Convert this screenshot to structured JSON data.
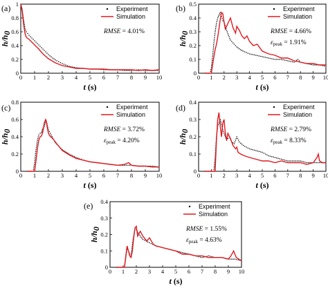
{
  "colors": {
    "simulation": "#e0181e",
    "experiment": "#000000"
  },
  "chart_data": [
    {
      "type": "line",
      "panel": "(a)",
      "xlabel": "t (s)",
      "ylabel": "h/h0",
      "xlim": [
        0,
        10
      ],
      "ylim": [
        0,
        1.0
      ],
      "xticks": [
        0,
        1,
        2,
        3,
        4,
        5,
        6,
        7,
        8,
        9,
        10
      ],
      "yticks": [
        0,
        0.2,
        0.4,
        0.6,
        0.8,
        1.0
      ],
      "ytick_labels": [
        "0",
        "0.2",
        "0.4",
        "0.6",
        "0.8",
        "1"
      ],
      "legend": [
        "Experiment",
        "Simulation"
      ],
      "annotations": [
        "RMSE = 4.01%"
      ],
      "series": [
        {
          "name": "Experiment",
          "style": "dots",
          "x": [
            0,
            0.1,
            0.2,
            0.3,
            0.4,
            0.6,
            0.8,
            1.0,
            1.2,
            1.5,
            1.8,
            2.0,
            2.3,
            2.6,
            3.0,
            3.5,
            4.0,
            4.5,
            5.0,
            5.5,
            6.0,
            6.5,
            7.0,
            7.5,
            8.0,
            8.5,
            9.0,
            9.5,
            10
          ],
          "y": [
            1.0,
            0.93,
            0.78,
            0.65,
            0.6,
            0.55,
            0.51,
            0.47,
            0.43,
            0.37,
            0.31,
            0.27,
            0.22,
            0.18,
            0.14,
            0.1,
            0.08,
            0.07,
            0.06,
            0.06,
            0.05,
            0.05,
            0.05,
            0.04,
            0.04,
            0.05,
            0.04,
            0.04,
            0.04
          ]
        },
        {
          "name": "Simulation",
          "style": "line",
          "x": [
            0,
            0.1,
            0.2,
            0.3,
            0.4,
            0.6,
            0.8,
            1.0,
            1.3,
            1.6,
            2.0,
            2.5,
            3.0,
            3.5,
            4.0,
            4.5,
            5.0,
            5.5,
            6.0,
            6.5,
            7.0,
            7.5,
            8.0,
            8.5,
            9.0,
            9.5,
            10
          ],
          "y": [
            1.0,
            0.9,
            0.72,
            0.58,
            0.52,
            0.49,
            0.45,
            0.41,
            0.35,
            0.28,
            0.21,
            0.15,
            0.11,
            0.09,
            0.07,
            0.07,
            0.06,
            0.06,
            0.06,
            0.05,
            0.05,
            0.05,
            0.05,
            0.04,
            0.05,
            0.04,
            0.05
          ]
        }
      ]
    },
    {
      "type": "line",
      "panel": "(b)",
      "xlabel": "t (s)",
      "ylabel": "h/h0",
      "xlim": [
        0,
        10
      ],
      "ylim": [
        0,
        0.5
      ],
      "xticks": [
        0,
        1,
        2,
        3,
        4,
        5,
        6,
        7,
        8,
        9,
        10
      ],
      "yticks": [
        0,
        0.1,
        0.2,
        0.3,
        0.4,
        0.5
      ],
      "ytick_labels": [
        "0",
        "0.1",
        "0.2",
        "0.3",
        "0.4",
        "0.5"
      ],
      "legend": [
        "Experiment",
        "Simulation"
      ],
      "annotations": [
        "RMSE = 4.66%",
        "εpeak = 1.91%"
      ],
      "series": [
        {
          "name": "Experiment",
          "style": "dots",
          "x": [
            0.5,
            0.9,
            1.0,
            1.1,
            1.2,
            1.3,
            1.4,
            1.5,
            1.6,
            1.7,
            1.8,
            1.9,
            2.0,
            2.2,
            2.5,
            2.8,
            3.0,
            3.3,
            3.5,
            4.0,
            4.5,
            5.0,
            5.5,
            6.0,
            6.5,
            7.0,
            7.5,
            7.8,
            8.0,
            8.5,
            9.0,
            9.5,
            10
          ],
          "y": [
            0,
            0,
            0.04,
            0.12,
            0.22,
            0.3,
            0.36,
            0.4,
            0.42,
            0.44,
            0.41,
            0.38,
            0.37,
            0.31,
            0.24,
            0.21,
            0.19,
            0.17,
            0.16,
            0.14,
            0.13,
            0.12,
            0.11,
            0.1,
            0.1,
            0.09,
            0.08,
            0.1,
            0.08,
            0.07,
            0.06,
            0.06,
            0.05
          ]
        },
        {
          "name": "Simulation",
          "style": "line",
          "x": [
            0.5,
            1.0,
            1.1,
            1.2,
            1.3,
            1.4,
            1.5,
            1.6,
            1.7,
            1.8,
            1.9,
            2.0,
            2.1,
            2.3,
            2.5,
            2.7,
            2.9,
            3.0,
            3.2,
            3.4,
            3.6,
            3.8,
            4.0,
            4.3,
            4.6,
            5.0,
            5.5,
            6.0,
            6.5,
            7.0,
            7.5,
            8.0,
            8.5,
            9.0,
            9.5,
            10
          ],
          "y": [
            0,
            0,
            0.06,
            0.12,
            0.17,
            0.21,
            0.26,
            0.32,
            0.39,
            0.44,
            0.43,
            0.37,
            0.32,
            0.36,
            0.4,
            0.33,
            0.29,
            0.34,
            0.31,
            0.27,
            0.25,
            0.27,
            0.23,
            0.2,
            0.21,
            0.16,
            0.14,
            0.13,
            0.11,
            0.11,
            0.09,
            0.08,
            0.07,
            0.07,
            0.06,
            0.06
          ]
        }
      ]
    },
    {
      "type": "line",
      "panel": "(c)",
      "xlabel": "t (s)",
      "ylabel": "h/h0",
      "xlim": [
        0,
        10
      ],
      "ylim": [
        0,
        0.8
      ],
      "xticks": [
        0,
        1,
        2,
        3,
        4,
        5,
        6,
        7,
        8,
        9,
        10
      ],
      "yticks": [
        0,
        0.2,
        0.4,
        0.6,
        0.8
      ],
      "ytick_labels": [
        "0",
        "0.2",
        "0.4",
        "0.6",
        "0.8"
      ],
      "legend": [
        "Experiment",
        "Simulation"
      ],
      "annotations": [
        "RMSE = 3.72%",
        "εpeak = 4.20%"
      ],
      "series": [
        {
          "name": "Experiment",
          "style": "dots",
          "x": [
            0.5,
            0.9,
            1.0,
            1.1,
            1.2,
            1.3,
            1.4,
            1.5,
            1.6,
            1.7,
            1.8,
            1.9,
            2.0,
            2.2,
            2.5,
            3.0,
            3.5,
            4.0,
            4.5,
            5.0,
            5.5,
            6.0,
            6.5,
            7.0,
            7.5,
            8.0,
            8.5,
            9.0,
            9.5,
            10
          ],
          "y": [
            0,
            0,
            0.1,
            0.25,
            0.36,
            0.42,
            0.44,
            0.45,
            0.5,
            0.52,
            0.58,
            0.55,
            0.48,
            0.42,
            0.33,
            0.25,
            0.2,
            0.16,
            0.13,
            0.11,
            0.1,
            0.09,
            0.08,
            0.07,
            0.07,
            0.07,
            0.06,
            0.06,
            0.06,
            0.05
          ]
        },
        {
          "name": "Simulation",
          "style": "line",
          "x": [
            0.5,
            1.0,
            1.1,
            1.2,
            1.3,
            1.4,
            1.5,
            1.6,
            1.7,
            1.8,
            1.85,
            1.9,
            2.0,
            2.1,
            2.3,
            2.5,
            2.8,
            3.0,
            3.5,
            4.0,
            4.5,
            5.0,
            5.5,
            6.0,
            6.5,
            7.0,
            7.5,
            7.8,
            8.0,
            8.5,
            9.0,
            9.5,
            10
          ],
          "y": [
            0,
            0,
            0.12,
            0.26,
            0.36,
            0.4,
            0.41,
            0.46,
            0.56,
            0.6,
            0.58,
            0.52,
            0.44,
            0.41,
            0.38,
            0.34,
            0.28,
            0.24,
            0.19,
            0.15,
            0.13,
            0.11,
            0.1,
            0.09,
            0.08,
            0.07,
            0.08,
            0.1,
            0.07,
            0.06,
            0.06,
            0.05,
            0.05
          ]
        }
      ]
    },
    {
      "type": "line",
      "panel": "(d)",
      "xlabel": "t (s)",
      "ylabel": "h/h0",
      "xlim": [
        0,
        10
      ],
      "ylim": [
        0,
        0.4
      ],
      "xticks": [
        0,
        1,
        2,
        3,
        4,
        5,
        6,
        7,
        8,
        9,
        10
      ],
      "yticks": [
        0,
        0.1,
        0.2,
        0.3,
        0.4
      ],
      "ytick_labels": [
        "0",
        "0.1",
        "0.2",
        "0.3",
        "0.4"
      ],
      "legend": [
        "Experiment",
        "Simulation"
      ],
      "annotations": [
        "RMSE = 2.79%",
        "εpeak = 8.33%"
      ],
      "series": [
        {
          "name": "Experiment",
          "style": "dots",
          "x": [
            0.5,
            1.2,
            1.3,
            1.4,
            1.5,
            1.6,
            1.7,
            1.8,
            1.9,
            2.0,
            2.2,
            2.4,
            2.6,
            2.8,
            3.0,
            3.2,
            3.5,
            4.0,
            4.5,
            5.0,
            5.5,
            6.0,
            6.5,
            7.0,
            7.5,
            8.0,
            8.5,
            9.0,
            9.5,
            10
          ],
          "y": [
            0,
            0,
            0.08,
            0.2,
            0.26,
            0.28,
            0.3,
            0.27,
            0.24,
            0.22,
            0.18,
            0.2,
            0.17,
            0.16,
            0.2,
            0.17,
            0.15,
            0.13,
            0.12,
            0.11,
            0.09,
            0.08,
            0.07,
            0.06,
            0.06,
            0.06,
            0.05,
            0.05,
            0.05,
            0.05
          ]
        },
        {
          "name": "Simulation",
          "style": "line",
          "x": [
            0.5,
            1.3,
            1.4,
            1.5,
            1.6,
            1.7,
            1.8,
            1.9,
            2.0,
            2.1,
            2.2,
            2.3,
            2.5,
            2.7,
            2.9,
            3.0,
            3.1,
            3.3,
            3.6,
            4.0,
            4.5,
            5.0,
            5.5,
            6.0,
            6.5,
            7.0,
            7.5,
            8.0,
            8.5,
            9.0,
            9.3,
            9.4,
            9.5,
            9.7,
            10
          ],
          "y": [
            0,
            0,
            0.18,
            0.3,
            0.34,
            0.26,
            0.2,
            0.28,
            0.3,
            0.22,
            0.18,
            0.22,
            0.19,
            0.15,
            0.13,
            0.14,
            0.11,
            0.1,
            0.09,
            0.08,
            0.07,
            0.06,
            0.06,
            0.05,
            0.06,
            0.05,
            0.05,
            0.05,
            0.04,
            0.05,
            0.08,
            0.1,
            0.06,
            0.05,
            0.05
          ]
        }
      ]
    },
    {
      "type": "line",
      "panel": "(e)",
      "xlabel": "t (s)",
      "ylabel": "h/h0",
      "xlim": [
        0,
        10
      ],
      "ylim": [
        0,
        0.4
      ],
      "xticks": [
        0,
        1,
        2,
        3,
        4,
        5,
        6,
        7,
        8,
        9,
        10
      ],
      "yticks": [
        0,
        0.1,
        0.2,
        0.3,
        0.4
      ],
      "ytick_labels": [
        "0",
        "0.1",
        "0.2",
        "0.3",
        "0.4"
      ],
      "legend": [
        "Experiment",
        "Simulation"
      ],
      "annotations": [
        "RMSE = 1.55%",
        "εpeak = 4.63%"
      ],
      "series": [
        {
          "name": "Experiment",
          "style": "dots",
          "x": [
            0.5,
            1.1,
            1.2,
            1.3,
            1.4,
            1.5,
            1.6,
            1.7,
            1.8,
            1.9,
            2.0,
            2.2,
            2.5,
            3.0,
            3.5,
            4.0,
            4.5,
            5.0,
            5.5,
            6.0,
            6.5,
            7.0,
            7.5,
            8.0,
            8.5,
            9.0,
            9.5,
            10
          ],
          "y": [
            0,
            0,
            0.06,
            0.12,
            0.1,
            0.08,
            0.07,
            0.14,
            0.19,
            0.24,
            0.23,
            0.2,
            0.17,
            0.15,
            0.13,
            0.12,
            0.11,
            0.1,
            0.09,
            0.08,
            0.07,
            0.06,
            0.07,
            0.06,
            0.06,
            0.05,
            0.05,
            0.04
          ]
        },
        {
          "name": "Simulation",
          "style": "line",
          "x": [
            0.5,
            1.1,
            1.2,
            1.3,
            1.4,
            1.5,
            1.6,
            1.7,
            1.8,
            1.9,
            2.0,
            2.1,
            2.3,
            2.5,
            2.8,
            3.0,
            3.3,
            3.5,
            4.0,
            4.5,
            5.0,
            5.5,
            6.0,
            6.5,
            7.0,
            7.5,
            8.0,
            8.5,
            9.0,
            9.2,
            9.4,
            9.6,
            10
          ],
          "y": [
            0,
            0,
            0.07,
            0.13,
            0.1,
            0.07,
            0.06,
            0.1,
            0.18,
            0.24,
            0.25,
            0.19,
            0.22,
            0.19,
            0.16,
            0.18,
            0.14,
            0.13,
            0.12,
            0.11,
            0.1,
            0.08,
            0.08,
            0.07,
            0.07,
            0.06,
            0.06,
            0.06,
            0.05,
            0.07,
            0.1,
            0.06,
            0.04
          ]
        }
      ]
    }
  ]
}
